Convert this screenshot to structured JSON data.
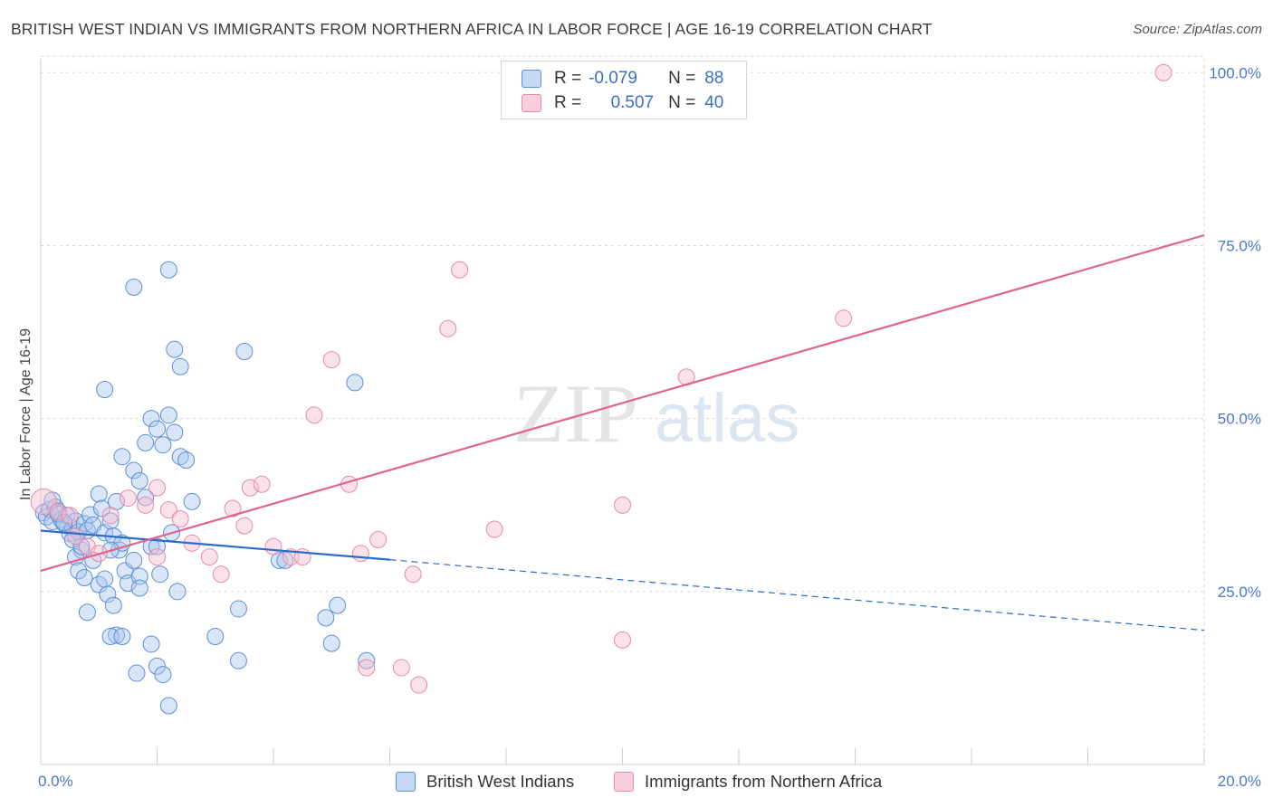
{
  "header": {
    "title": "BRITISH WEST INDIAN VS IMMIGRANTS FROM NORTHERN AFRICA IN LABOR FORCE | AGE 16-19 CORRELATION CHART",
    "source": "Source: ZipAtlas.com"
  },
  "watermark": {
    "zip": "ZIP",
    "atlas": "atlas"
  },
  "legend": {
    "rows": [
      {
        "r_label": "R =",
        "r_value": "-0.079",
        "n_label": "N =",
        "n_value": "88"
      },
      {
        "r_label": "R =",
        "r_value": "0.507",
        "n_label": "N =",
        "n_value": "40"
      }
    ]
  },
  "colors": {
    "blue_fill": "#aac8f0",
    "blue_stroke": "#5b8fd6",
    "blue_line": "#2b6cc8",
    "pink_fill": "#f6bfd0",
    "pink_stroke": "#e889a8",
    "pink_line": "#e0648c",
    "tick_text": "#4a78c8",
    "grid": "#d8d8d8"
  },
  "chart_data": {
    "type": "scatter",
    "title": "BRITISH WEST INDIAN VS IMMIGRANTS FROM NORTHERN AFRICA IN LABOR FORCE | AGE 16-19 CORRELATION CHART",
    "xlabel": "",
    "ylabel": "In Labor Force | Age 16-19",
    "xlim": [
      0,
      20
    ],
    "ylim": [
      0,
      102
    ],
    "x_tick_labels": [
      "0.0%",
      "20.0%"
    ],
    "y_ticks": [
      25,
      50,
      75,
      100
    ],
    "y_tick_labels": [
      "25.0%",
      "50.0%",
      "75.0%",
      "100.0%"
    ],
    "grid": "horizontal dashed",
    "legend_position": "top-center",
    "series": [
      {
        "name": "British West Indians",
        "color": "#aac8f0",
        "trend": {
          "x": [
            0.0,
            6.0
          ],
          "y": [
            33.8,
            29.6
          ],
          "extended_to": [
            20.0,
            19.4
          ]
        },
        "points": [
          [
            0.05,
            36.4
          ],
          [
            0.1,
            35.8
          ],
          [
            0.15,
            36.9
          ],
          [
            0.2,
            35.1
          ],
          [
            0.25,
            37.2
          ],
          [
            0.3,
            36.6
          ],
          [
            0.35,
            35.4
          ],
          [
            0.4,
            34.8
          ],
          [
            0.45,
            36.0
          ],
          [
            0.5,
            33.4
          ],
          [
            0.55,
            34.2
          ],
          [
            0.6,
            35.2
          ],
          [
            0.65,
            33.6
          ],
          [
            0.7,
            31.0
          ],
          [
            0.75,
            34.8
          ],
          [
            0.8,
            33.8
          ],
          [
            0.85,
            36.1
          ],
          [
            0.9,
            34.6
          ],
          [
            1.0,
            39.1
          ],
          [
            1.05,
            37.0
          ],
          [
            1.1,
            33.5
          ],
          [
            1.2,
            35.2
          ],
          [
            1.25,
            33.0
          ],
          [
            1.3,
            38.0
          ],
          [
            1.35,
            31.0
          ],
          [
            1.4,
            32.0
          ],
          [
            1.45,
            28.0
          ],
          [
            1.5,
            26.2
          ],
          [
            1.6,
            29.5
          ],
          [
            1.7,
            27.2
          ],
          [
            1.8,
            38.6
          ],
          [
            1.9,
            31.5
          ],
          [
            0.55,
            32.5
          ],
          [
            0.6,
            30.0
          ],
          [
            0.65,
            28.0
          ],
          [
            0.7,
            31.5
          ],
          [
            0.75,
            27.0
          ],
          [
            0.8,
            22.0
          ],
          [
            0.9,
            29.5
          ],
          [
            1.0,
            26.0
          ],
          [
            1.1,
            26.8
          ],
          [
            1.15,
            24.6
          ],
          [
            0.2,
            38.2
          ],
          [
            0.3,
            36.2
          ],
          [
            0.4,
            35.0
          ],
          [
            1.2,
            31.0
          ],
          [
            1.25,
            23.0
          ],
          [
            1.3,
            18.7
          ],
          [
            1.4,
            44.5
          ],
          [
            1.6,
            42.5
          ],
          [
            1.7,
            41.0
          ],
          [
            1.8,
            46.5
          ],
          [
            1.9,
            50.0
          ],
          [
            2.0,
            48.5
          ],
          [
            2.1,
            46.2
          ],
          [
            2.2,
            50.5
          ],
          [
            2.3,
            48.0
          ],
          [
            2.4,
            44.5
          ],
          [
            2.5,
            44.0
          ],
          [
            2.6,
            38.0
          ],
          [
            1.1,
            54.2
          ],
          [
            1.6,
            69.0
          ],
          [
            2.3,
            60.0
          ],
          [
            2.4,
            57.5
          ],
          [
            2.2,
            71.5
          ],
          [
            3.5,
            59.7
          ],
          [
            5.4,
            55.2
          ],
          [
            2.0,
            31.5
          ],
          [
            2.05,
            27.5
          ],
          [
            1.7,
            25.5
          ],
          [
            2.25,
            33.5
          ],
          [
            2.35,
            25.0
          ],
          [
            3.0,
            18.5
          ],
          [
            3.4,
            22.5
          ],
          [
            4.1,
            29.5
          ],
          [
            4.2,
            29.5
          ],
          [
            4.9,
            21.2
          ],
          [
            5.0,
            17.5
          ],
          [
            5.1,
            23.0
          ],
          [
            5.6,
            15.0
          ],
          [
            1.2,
            18.5
          ],
          [
            1.4,
            18.5
          ],
          [
            1.65,
            13.2
          ],
          [
            1.9,
            17.4
          ],
          [
            2.0,
            14.2
          ],
          [
            2.1,
            13.0
          ],
          [
            2.2,
            8.5
          ],
          [
            3.4,
            15.0
          ]
        ]
      },
      {
        "name": "Immigrants from Northern Africa",
        "color": "#f6bfd0",
        "trend": {
          "x": [
            0.0,
            20.0
          ],
          "y": [
            28.0,
            76.5
          ]
        },
        "points": [
          [
            0.05,
            38.0
          ],
          [
            0.3,
            36.5
          ],
          [
            0.5,
            36.0
          ],
          [
            0.6,
            33.0
          ],
          [
            0.8,
            31.5
          ],
          [
            1.0,
            30.5
          ],
          [
            1.2,
            36.0
          ],
          [
            1.5,
            38.5
          ],
          [
            1.8,
            37.5
          ],
          [
            2.0,
            40.0
          ],
          [
            2.2,
            36.8
          ],
          [
            2.4,
            35.5
          ],
          [
            2.6,
            32.0
          ],
          [
            2.9,
            30.0
          ],
          [
            3.1,
            27.5
          ],
          [
            3.3,
            37.0
          ],
          [
            3.5,
            34.5
          ],
          [
            3.6,
            40.0
          ],
          [
            3.8,
            40.5
          ],
          [
            4.0,
            31.5
          ],
          [
            4.3,
            30.0
          ],
          [
            4.5,
            30.0
          ],
          [
            4.7,
            50.5
          ],
          [
            5.0,
            58.5
          ],
          [
            5.3,
            40.5
          ],
          [
            5.5,
            30.5
          ],
          [
            5.8,
            32.5
          ],
          [
            6.4,
            27.5
          ],
          [
            7.0,
            63.0
          ],
          [
            7.2,
            71.5
          ],
          [
            7.8,
            34.0
          ],
          [
            10.0,
            18.0
          ],
          [
            10.0,
            37.5
          ],
          [
            11.1,
            56.0
          ],
          [
            13.8,
            64.5
          ],
          [
            19.3,
            100.0
          ],
          [
            5.6,
            14.0
          ],
          [
            6.2,
            14.0
          ],
          [
            6.5,
            11.5
          ],
          [
            2.0,
            30.0
          ]
        ]
      }
    ]
  },
  "bottom_legend": {
    "items": [
      {
        "label": "British West Indians"
      },
      {
        "label": "Immigrants from Northern Africa"
      }
    ]
  }
}
